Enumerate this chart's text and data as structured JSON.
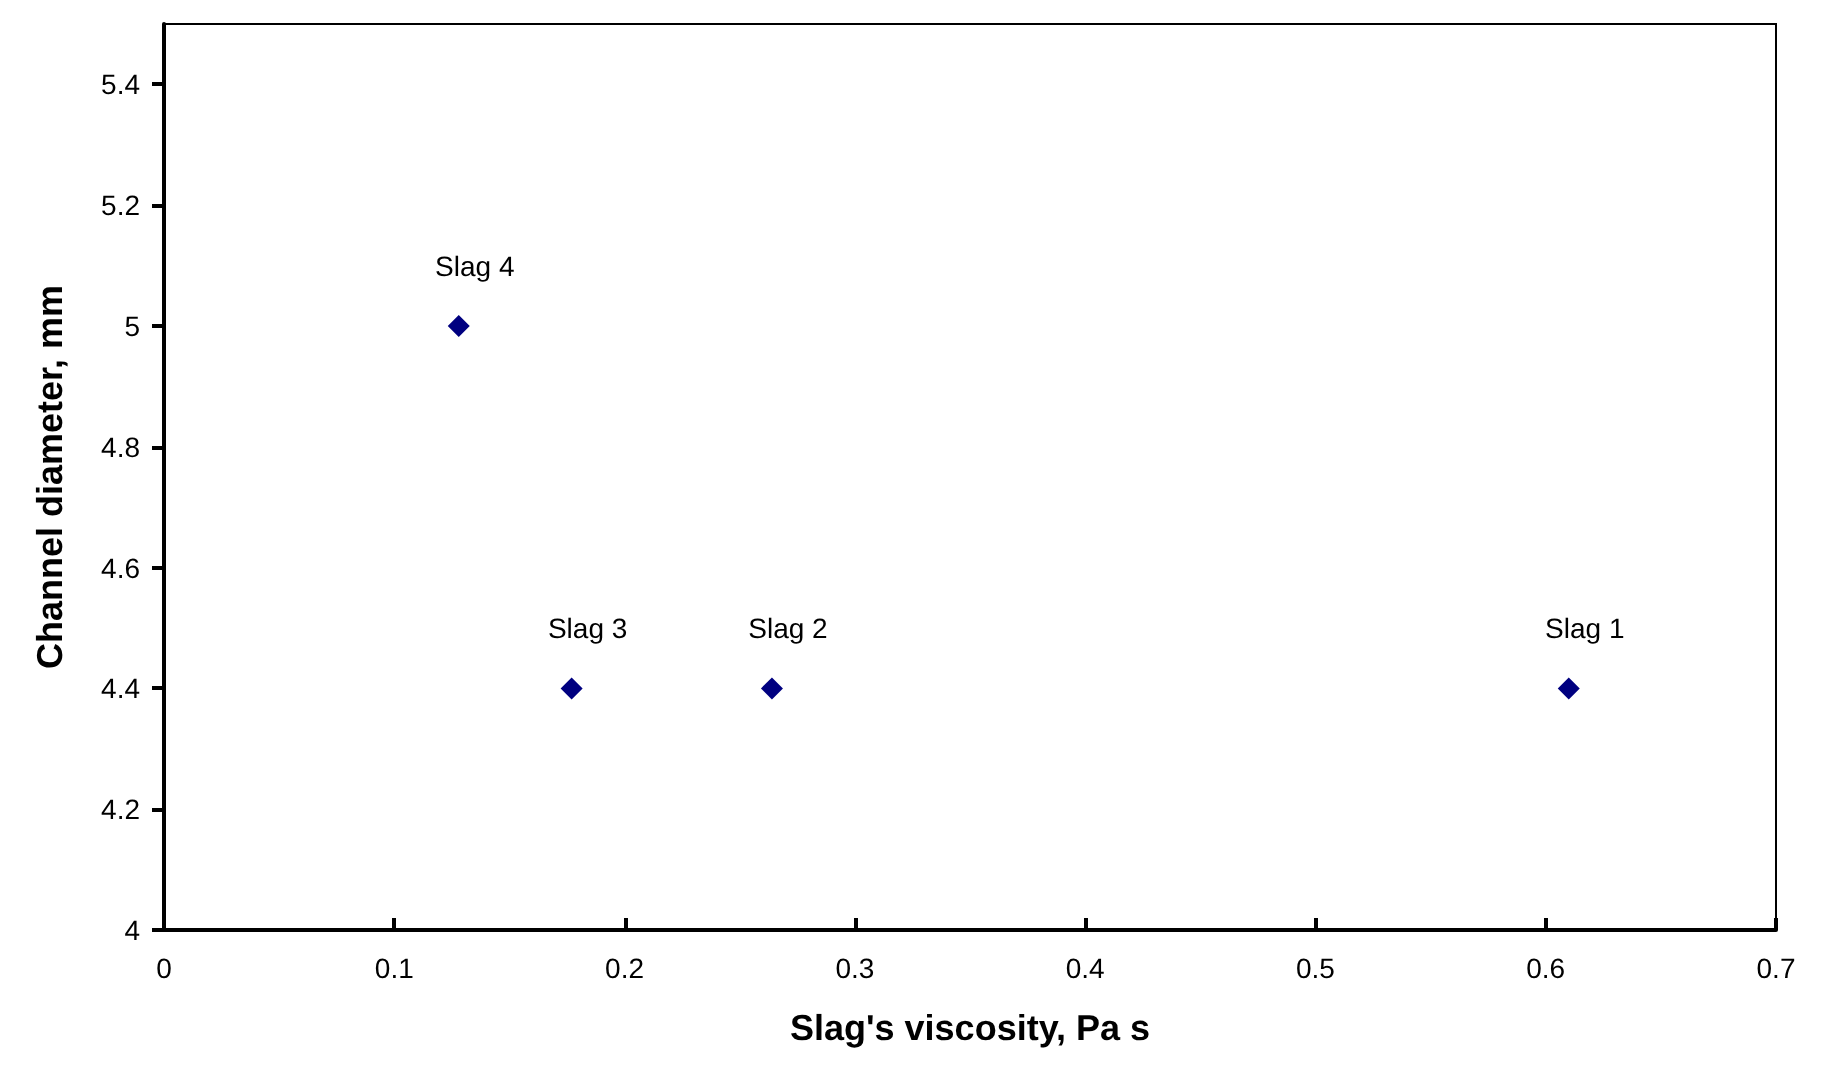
{
  "chart_data": {
    "type": "scatter",
    "xlabel": "Slag's viscosity, Pa s",
    "ylabel": "Channel diameter, mm",
    "x": [
      0.61,
      0.264,
      0.177,
      0.128
    ],
    "series": [
      {
        "color": "#000080",
        "values": [
          4.4,
          4.4,
          4.4,
          5.0
        ]
      }
    ],
    "xlim": [
      0,
      0.7
    ],
    "xticks": [
      0,
      0.1,
      0.2,
      0.3,
      0.4,
      0.5,
      0.6,
      0.7
    ],
    "ylim": [
      4,
      5.5
    ],
    "yticks": [
      4,
      4.2,
      4.4,
      4.6,
      4.8,
      5,
      5.2,
      5.4
    ],
    "annotations": [
      {
        "text": "Slag 1",
        "x": 0.61,
        "y": 4.4
      },
      {
        "text": "Slag 2",
        "x": 0.264,
        "y": 4.4
      },
      {
        "text": "Slag 3",
        "x": 0.177,
        "y": 4.4
      },
      {
        "text": "Slag 4",
        "x": 0.128,
        "y": 5.0
      }
    ],
    "marker": "diamond"
  }
}
